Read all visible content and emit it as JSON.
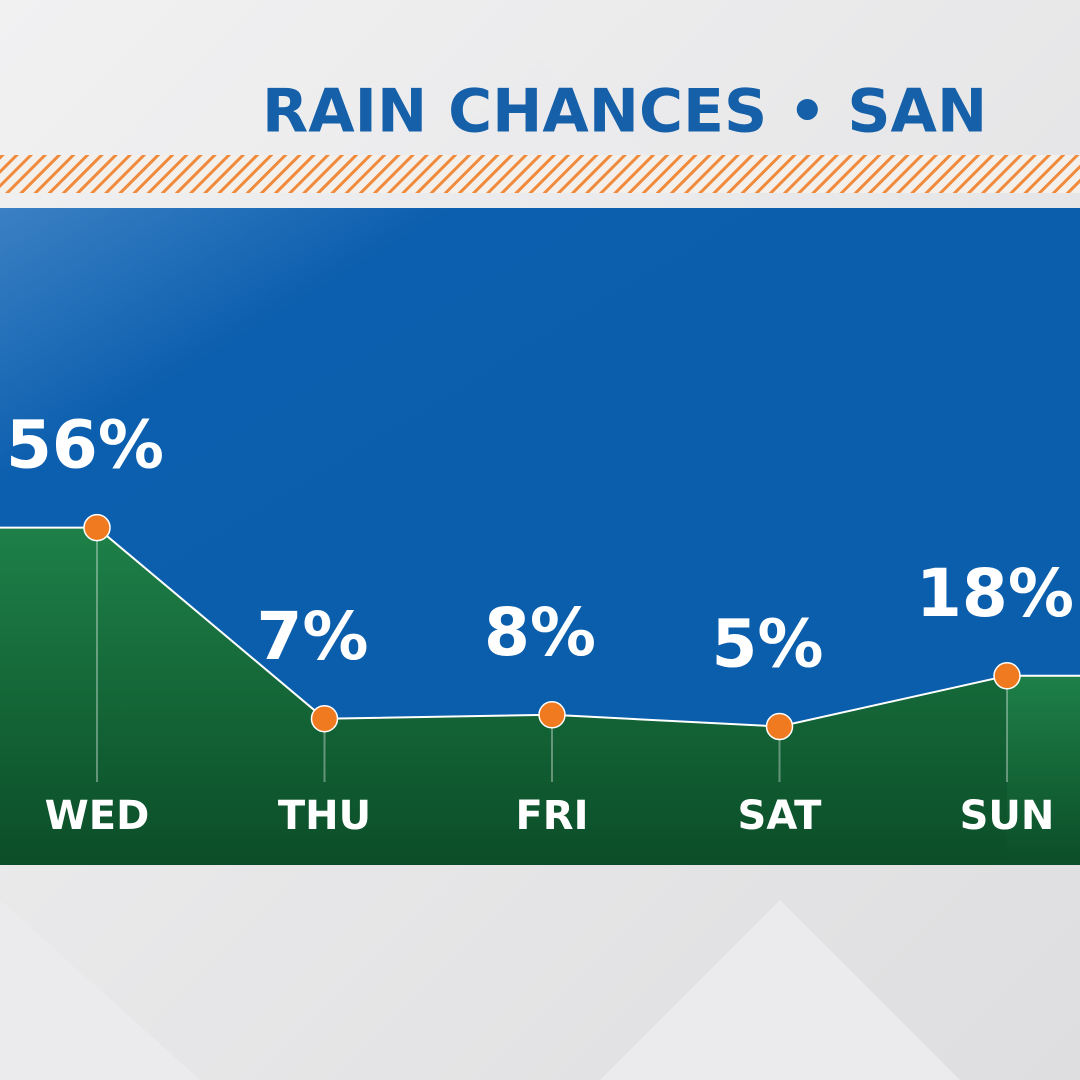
{
  "chart_data": {
    "type": "area",
    "title": "RAIN CHANCES •  SAN",
    "categories": [
      "WED",
      "THU",
      "FRI",
      "SAT",
      "SUN"
    ],
    "values": [
      56,
      7,
      8,
      5,
      18
    ],
    "value_labels": [
      "56%",
      "7%",
      "8%",
      "5%",
      "18%"
    ],
    "color": "#f07a20",
    "ylim": [
      0,
      100
    ]
  }
}
